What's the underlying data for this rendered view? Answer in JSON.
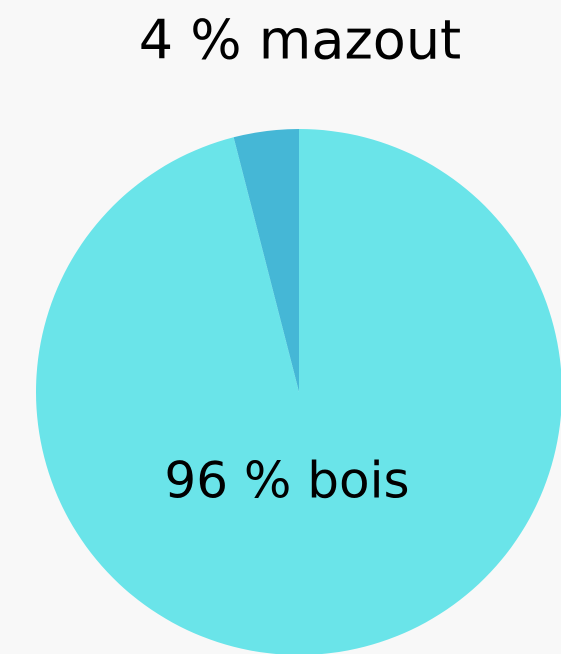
{
  "chart_data": {
    "type": "pie",
    "values": [
      4,
      96
    ],
    "value_labels": [
      "4 % mazout",
      "96 % bois"
    ],
    "colors": [
      "#45b7d6",
      "#6ae4e9"
    ]
  }
}
